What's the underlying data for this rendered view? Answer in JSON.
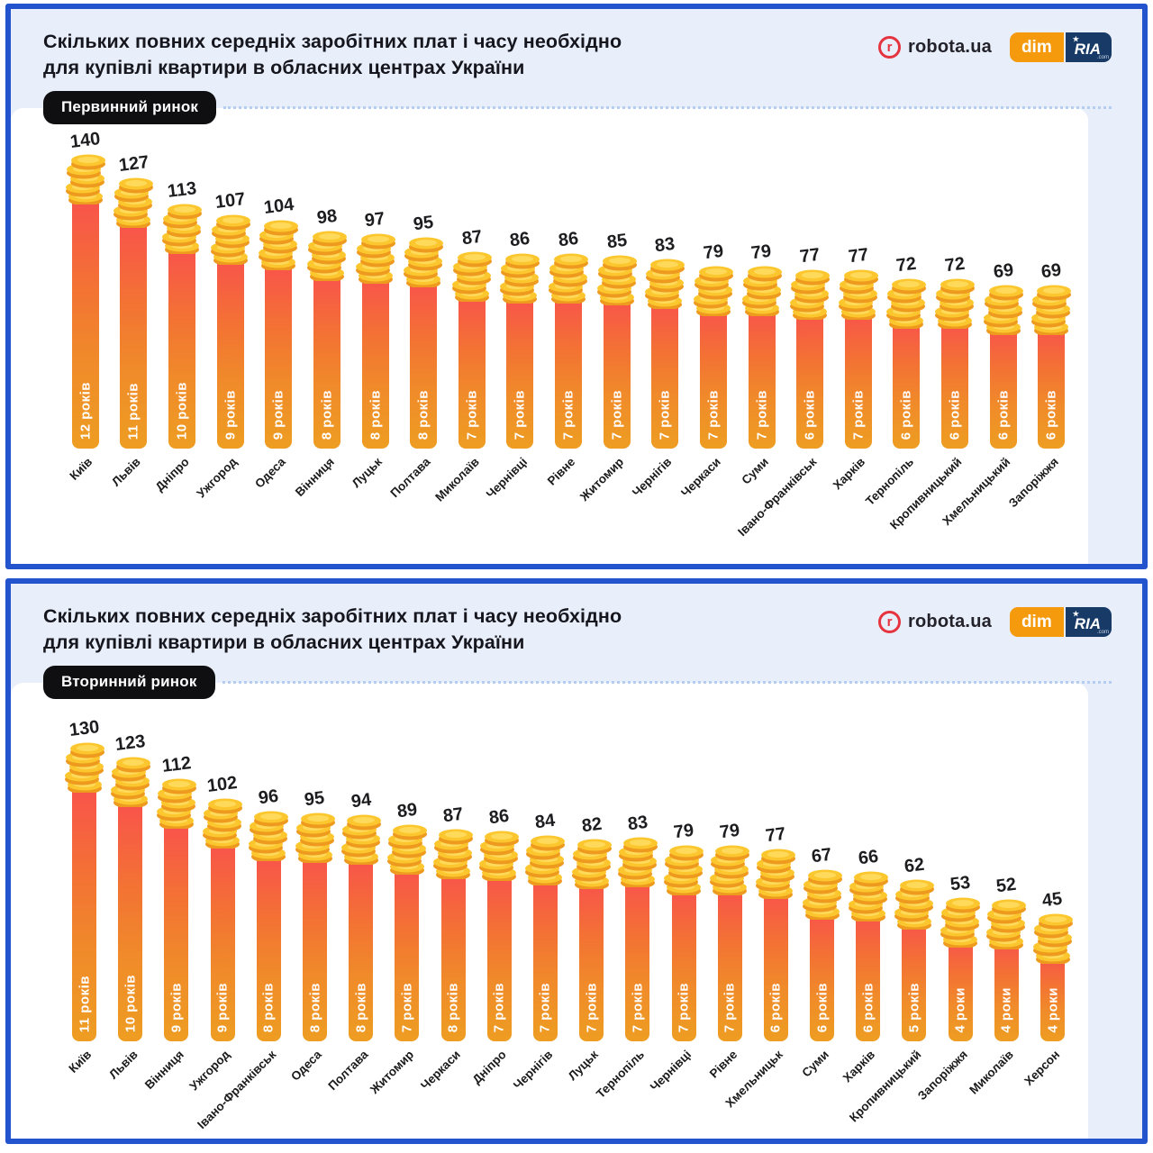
{
  "header": {
    "title_line1": "Скільких повних середніх заробітних плат і часу необхідно",
    "title_line2": "для купівлі квартири в обласних центрах України",
    "logo_robota_letter": "r",
    "logo_robota": "robota.ua",
    "logo_dim": "dim",
    "logo_ria": "RIA",
    "logo_ria_star": "★",
    "logo_ria_suffix": ".com"
  },
  "colors": {
    "frame_blue": "#2453ce",
    "panel_bg": "#e9effa",
    "sheet_bg": "#ffffff",
    "title_text": "#16161e",
    "badge_bg": "#0f0f12",
    "badge_text": "#ffffff",
    "dotted_line": "#b5cdf0",
    "bar_top": "#f9504e",
    "bar_bottom": "#ee9d22",
    "coin_face": "#fcc72e",
    "coin_edge": "#ed9a1e",
    "coin_highlight": "#ffd95a",
    "value_text": "#1d1d20",
    "city_text": "#1b1b1b",
    "year_text": "#ffffff",
    "robota_red": "#e5333f",
    "robota_text": "#23222b",
    "dim_orange": "#f49a0c",
    "ria_navy": "#173a66"
  },
  "chart_data": [
    {
      "type": "bar",
      "market_label": "Первинний ринок",
      "title": "Скільких повних середніх заробітних плат і часу необхідно для купівлі квартири в обласних центрах України",
      "grid": false,
      "ylim": [
        0,
        140
      ],
      "categories": [
        "Київ",
        "Львів",
        "Дніпро",
        "Ужгород",
        "Одеса",
        "Вінниця",
        "Луцьк",
        "Полтава",
        "Миколаїв",
        "Чернівці",
        "Рівне",
        "Житомир",
        "Чернігів",
        "Черкаси",
        "Суми",
        "Івано-Франківськ",
        "Харків",
        "Тернопіль",
        "Кропивницький",
        "Хмельницький",
        "Запоріжжя"
      ],
      "values": [
        140,
        127,
        113,
        107,
        104,
        98,
        97,
        95,
        87,
        86,
        86,
        85,
        83,
        79,
        79,
        77,
        77,
        72,
        72,
        69,
        69
      ],
      "bar_labels": [
        "12 років",
        "11 років",
        "10 років",
        "9 років",
        "9 років",
        "8 років",
        "8 років",
        "8 років",
        "7 років",
        "7 років",
        "7 років",
        "7 років",
        "7 років",
        "7 років",
        "7 років",
        "6 років",
        "7 років",
        "6 років",
        "6 років",
        "6 років",
        "6 років"
      ]
    },
    {
      "type": "bar",
      "market_label": "Вторинний ринок",
      "title": "Скільких повних середніх заробітних плат і часу необхідно для купівлі квартири в обласних центрах України",
      "grid": false,
      "ylim": [
        0,
        130
      ],
      "categories": [
        "Київ",
        "Львів",
        "Вінниця",
        "Ужгород",
        "Івано-Франківськ",
        "Одеса",
        "Полтава",
        "Житомир",
        "Черкаси",
        "Дніпро",
        "Чернігів",
        "Луцьк",
        "Тернопіль",
        "Чернівці",
        "Рівне",
        "Хмельницьк",
        "Суми",
        "Харків",
        "Кропивницький",
        "Запоріжжя",
        "Миколаїв",
        "Херсон"
      ],
      "values": [
        130,
        123,
        112,
        102,
        96,
        95,
        94,
        89,
        87,
        86,
        84,
        82,
        83,
        79,
        79,
        77,
        67,
        66,
        62,
        53,
        52,
        45
      ],
      "bar_labels": [
        "11 років",
        "10 років",
        "9 років",
        "9 років",
        "8 років",
        "8 років",
        "8 років",
        "7 років",
        "8 років",
        "7 років",
        "7 років",
        "7 років",
        "7 років",
        "7 років",
        "7 років",
        "6 років",
        "6 років",
        "6 років",
        "5 років",
        "4 роки",
        "4 роки",
        "4 роки"
      ]
    }
  ]
}
